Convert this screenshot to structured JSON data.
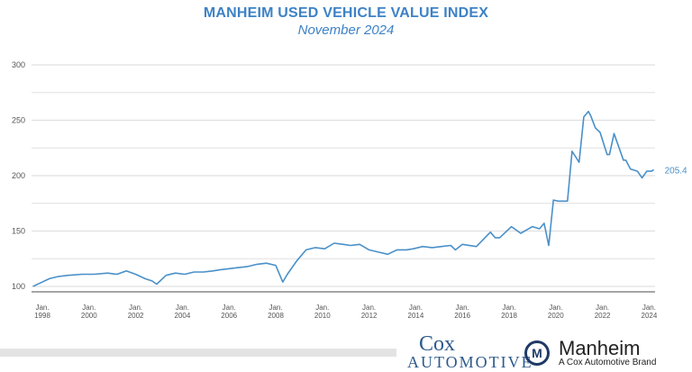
{
  "header": {
    "title": "MANHEIM USED VEHICLE VALUE INDEX",
    "subtitle": "November 2024"
  },
  "footer": {
    "cox_logo": "Cox Automotive",
    "manheim_logo": "Manheim",
    "manheim_tagline": "A Cox Automotive Brand"
  },
  "colors": {
    "line": "#4a90c8",
    "title": "#3d82c6",
    "grid": "#e0e0e0",
    "axis": "#888888"
  },
  "chart_data": {
    "type": "line",
    "title": "MANHEIM USED VEHICLE VALUE INDEX",
    "subtitle": "November 2024",
    "xlabel": "",
    "ylabel": "",
    "ylim": [
      100,
      300
    ],
    "xlim": [
      1997.6,
      2024.3
    ],
    "grid": true,
    "y_ticks": [
      100,
      150,
      200,
      250,
      300
    ],
    "y_minor_grid": [
      125,
      175,
      225,
      275
    ],
    "x_ticks": [
      {
        "year": 1998,
        "label": [
          "Jan.",
          "1998"
        ]
      },
      {
        "year": 2000,
        "label": [
          "Jan.",
          "2000"
        ]
      },
      {
        "year": 2002,
        "label": [
          "Jan.",
          "2002"
        ]
      },
      {
        "year": 2004,
        "label": [
          "Jan.",
          "2004"
        ]
      },
      {
        "year": 2006,
        "label": [
          "Jan.",
          "2006"
        ]
      },
      {
        "year": 2008,
        "label": [
          "Jan.",
          "2008"
        ]
      },
      {
        "year": 2010,
        "label": [
          "Jan.",
          "2010"
        ]
      },
      {
        "year": 2012,
        "label": [
          "Jan.",
          "2012"
        ]
      },
      {
        "year": 2014,
        "label": [
          "Jan.",
          "2014"
        ]
      },
      {
        "year": 2016,
        "label": [
          "Jan.",
          "2016"
        ]
      },
      {
        "year": 2018,
        "label": [
          "Jan.",
          "2018"
        ]
      },
      {
        "year": 2020,
        "label": [
          "Jan.",
          "2020"
        ]
      },
      {
        "year": 2022,
        "label": [
          "Jan.",
          "2022"
        ]
      },
      {
        "year": 2024,
        "label": [
          "Jan.",
          "2024"
        ]
      }
    ],
    "end_label": "205.4",
    "series": [
      {
        "x": [
          1997.6,
          1997.9,
          1998.3,
          1998.7,
          1999.1,
          1999.7,
          2000.2,
          2000.8,
          2001.2,
          2001.6,
          2002.0,
          2002.4,
          2002.7,
          2002.9,
          2003.3,
          2003.7,
          2004.1,
          2004.5,
          2004.9,
          2005.3,
          2005.6,
          2006.0,
          2006.4,
          2006.8,
          2007.2,
          2007.6,
          2008.0,
          2008.3,
          2008.5,
          2008.9,
          2009.3,
          2009.7,
          2010.1,
          2010.5,
          2010.9,
          2011.2,
          2011.6,
          2012.0,
          2012.4,
          2012.8,
          2013.2,
          2013.6,
          2013.9,
          2014.3,
          2014.7,
          2015.1,
          2015.5,
          2015.7,
          2016.0,
          2016.6,
          2017.2,
          2017.4,
          2017.6,
          2018.1,
          2018.5,
          2019.0,
          2019.3,
          2019.5,
          2019.7,
          2019.9,
          2020.1,
          2020.5,
          2020.7,
          2021.0,
          2021.2,
          2021.4,
          2021.5,
          2021.7,
          2021.9,
          2022.2,
          2022.3,
          2022.5,
          2022.9,
          2023.0,
          2023.2,
          2023.5,
          2023.7,
          2023.9,
          2024.1,
          2024.2
        ],
        "y": [
          100,
          103,
          107,
          109,
          110,
          111,
          111,
          112,
          111,
          114,
          111,
          107,
          105,
          102,
          110,
          112,
          111,
          113,
          113,
          114,
          115,
          116,
          117,
          118,
          120,
          121,
          119,
          104,
          111,
          123,
          133,
          135,
          134,
          139,
          138,
          137,
          138,
          133,
          131,
          129,
          133,
          133,
          134,
          136,
          135,
          136,
          137,
          133,
          138,
          136,
          149,
          144,
          144,
          154,
          148,
          154,
          152,
          157,
          137,
          178,
          177,
          177,
          222,
          212,
          253,
          258,
          254,
          243,
          239,
          219,
          219,
          238,
          214,
          214,
          206,
          204,
          198,
          204,
          204,
          205.4
        ]
      }
    ]
  }
}
